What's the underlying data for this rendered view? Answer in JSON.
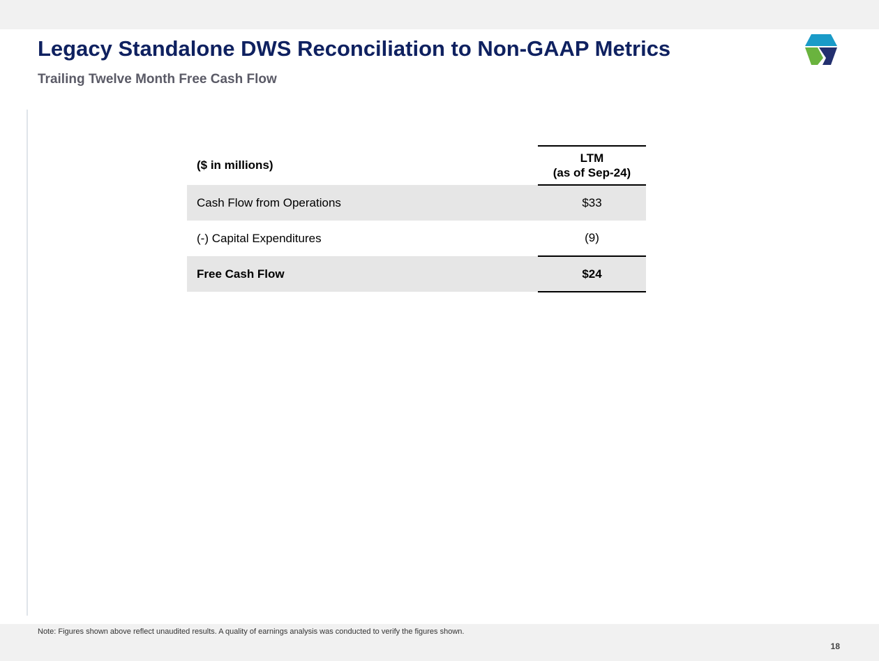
{
  "slide": {
    "title": "Legacy Standalone DWS Reconciliation to Non-GAAP Metrics",
    "subtitle": "Trailing Twelve Month Free Cash Flow",
    "logo_icon": "hexagon-logo-icon",
    "page_number": "18"
  },
  "table": {
    "header": {
      "label": "($ in millions)",
      "value_line1": "LTM",
      "value_line2": "(as of Sep-24)"
    },
    "rows": [
      {
        "label": "Cash Flow from Operations",
        "value": "$33"
      },
      {
        "label": "(-) Capital Expenditures",
        "value": "(9)"
      },
      {
        "label": "Free Cash Flow",
        "value": "$24"
      }
    ]
  },
  "footnote": "Note: Figures shown above reflect unaudited results. A quality of earnings analysis was conducted to verify the figures shown.",
  "colors": {
    "title": "#0f2160",
    "subtitle": "#5a5a66",
    "row_shading": "#e6e6e6",
    "band": "#f1f1f1",
    "logo_teal": "#1a9bc8",
    "logo_green": "#6ab33e",
    "logo_navy": "#23306f"
  }
}
